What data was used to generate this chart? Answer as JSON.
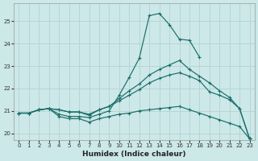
{
  "xlabel": "Humidex (Indice chaleur)",
  "bg_color": "#cce8e8",
  "grid_color": "#b8d4d4",
  "line_color": "#1a6e6a",
  "xlim": [
    -0.5,
    23.5
  ],
  "ylim": [
    19.7,
    25.8
  ],
  "yticks": [
    20,
    21,
    22,
    23,
    24,
    25
  ],
  "xticks": [
    0,
    1,
    2,
    3,
    4,
    5,
    6,
    7,
    8,
    9,
    10,
    11,
    12,
    13,
    14,
    15,
    16,
    17,
    18,
    19,
    20,
    21,
    22,
    23
  ],
  "lines": [
    {
      "x": [
        0,
        1,
        2,
        3,
        4,
        5,
        6,
        7,
        8,
        9,
        10,
        11,
        12,
        13,
        14,
        15,
        16,
        17,
        18,
        19,
        20,
        21,
        22,
        23
      ],
      "y": [
        20.9,
        20.9,
        21.05,
        21.1,
        20.85,
        20.75,
        20.75,
        20.7,
        20.85,
        21.0,
        21.7,
        22.5,
        23.35,
        25.25,
        25.35,
        24.85,
        24.2,
        24.15,
        23.4,
        null,
        null,
        null,
        null,
        19.75
      ]
    },
    {
      "x": [
        0,
        1,
        2,
        3,
        4,
        5,
        6,
        7,
        8,
        9,
        10,
        11,
        12,
        13,
        14,
        15,
        16,
        17,
        18,
        19,
        20,
        21,
        22,
        23
      ],
      "y": [
        20.9,
        20.9,
        21.05,
        21.1,
        21.05,
        20.95,
        20.95,
        20.8,
        21.05,
        21.2,
        21.55,
        21.9,
        22.2,
        22.6,
        22.85,
        23.05,
        23.25,
        22.85,
        22.55,
        22.25,
        21.9,
        21.6,
        21.1,
        19.75
      ]
    },
    {
      "x": [
        0,
        1,
        2,
        3,
        4,
        5,
        6,
        7,
        8,
        9,
        10,
        11,
        12,
        13,
        14,
        15,
        16,
        17,
        18,
        19,
        20,
        21,
        22,
        23
      ],
      "y": [
        20.9,
        20.9,
        21.05,
        21.1,
        21.05,
        20.95,
        20.95,
        20.85,
        21.05,
        21.2,
        21.45,
        21.7,
        21.95,
        22.25,
        22.45,
        22.6,
        22.7,
        22.55,
        22.35,
        21.85,
        21.7,
        21.5,
        21.1,
        19.75
      ]
    },
    {
      "x": [
        0,
        1,
        2,
        3,
        4,
        5,
        6,
        7,
        8,
        9,
        10,
        11,
        12,
        13,
        14,
        15,
        16,
        17,
        18,
        19,
        20,
        21,
        22,
        23
      ],
      "y": [
        20.9,
        20.9,
        21.05,
        21.1,
        20.75,
        20.65,
        20.65,
        20.5,
        20.65,
        20.75,
        20.85,
        20.9,
        21.0,
        21.05,
        21.1,
        21.15,
        21.2,
        21.05,
        20.9,
        20.75,
        20.6,
        20.45,
        20.3,
        19.75
      ]
    }
  ]
}
